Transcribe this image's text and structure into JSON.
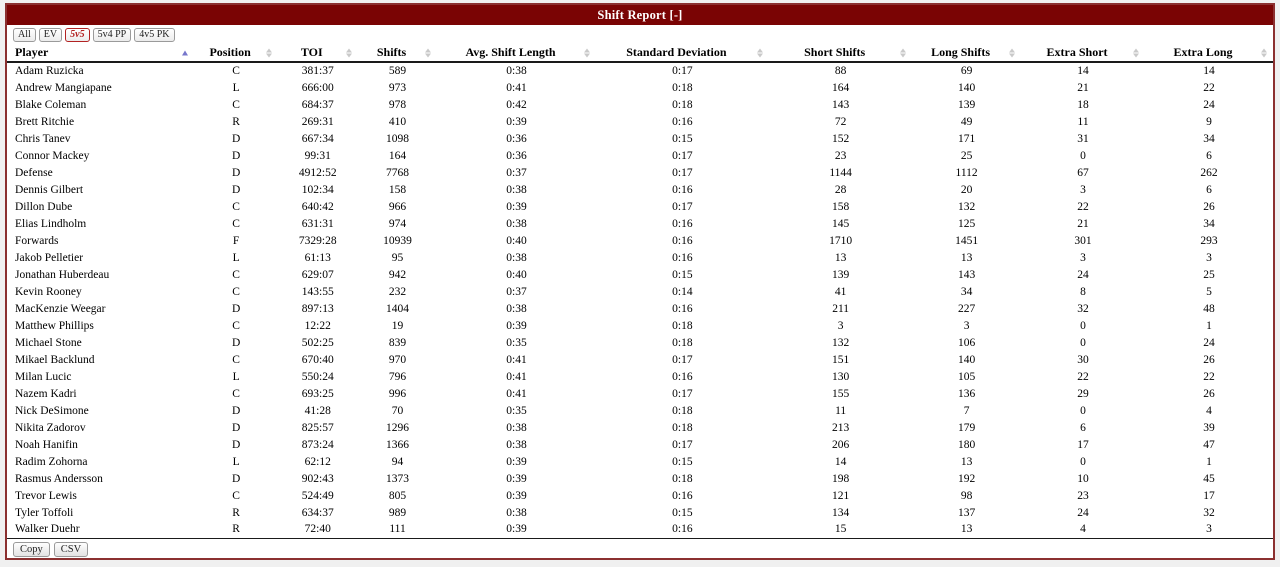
{
  "title": "Shift Report [-]",
  "colors": {
    "maroon": "#7a0404",
    "border": "#8b3030",
    "filter-active": "#b22222",
    "sort-active": "#7777cc",
    "sort-idle": "#c9c9c9"
  },
  "filters": [
    {
      "label": "All",
      "active": false
    },
    {
      "label": "EV",
      "active": false
    },
    {
      "label": "5v5",
      "active": true
    },
    {
      "label": "5v4 PP",
      "active": false
    },
    {
      "label": "4v5 PK",
      "active": false
    }
  ],
  "table": {
    "columns": [
      {
        "label": "Player",
        "key": "player",
        "sort": "asc",
        "icon": "sort-asc-icon"
      },
      {
        "label": "Position",
        "key": "position",
        "sort": "none",
        "icon": "sort-both-icon"
      },
      {
        "label": "TOI",
        "key": "toi",
        "sort": "none",
        "icon": "sort-both-icon"
      },
      {
        "label": "Shifts",
        "key": "shifts",
        "sort": "none",
        "icon": "sort-both-icon"
      },
      {
        "label": "Avg. Shift Length",
        "key": "avg-shift-length",
        "sort": "none",
        "icon": "sort-both-icon"
      },
      {
        "label": "Standard Deviation",
        "key": "standard-deviation",
        "sort": "none",
        "icon": "sort-both-icon"
      },
      {
        "label": "Short Shifts",
        "key": "short-shifts",
        "sort": "none",
        "icon": "sort-both-icon"
      },
      {
        "label": "Long Shifts",
        "key": "long-shifts",
        "sort": "none",
        "icon": "sort-both-icon"
      },
      {
        "label": "Extra Short",
        "key": "extra-short",
        "sort": "none",
        "icon": "sort-both-icon"
      },
      {
        "label": "Extra Long",
        "key": "extra-long",
        "sort": "none",
        "icon": "sort-both-icon"
      }
    ],
    "rows": [
      [
        "Adam Ruzicka",
        "C",
        "381:37",
        "589",
        "0:38",
        "0:17",
        "88",
        "69",
        "14",
        "14"
      ],
      [
        "Andrew Mangiapane",
        "L",
        "666:00",
        "973",
        "0:41",
        "0:18",
        "164",
        "140",
        "21",
        "22"
      ],
      [
        "Blake Coleman",
        "C",
        "684:37",
        "978",
        "0:42",
        "0:18",
        "143",
        "139",
        "18",
        "24"
      ],
      [
        "Brett Ritchie",
        "R",
        "269:31",
        "410",
        "0:39",
        "0:16",
        "72",
        "49",
        "11",
        "9"
      ],
      [
        "Chris Tanev",
        "D",
        "667:34",
        "1098",
        "0:36",
        "0:15",
        "152",
        "171",
        "31",
        "34"
      ],
      [
        "Connor Mackey",
        "D",
        "99:31",
        "164",
        "0:36",
        "0:17",
        "23",
        "25",
        "0",
        "6"
      ],
      [
        "Defense",
        "D",
        "4912:52",
        "7768",
        "0:37",
        "0:17",
        "1144",
        "1112",
        "67",
        "262"
      ],
      [
        "Dennis Gilbert",
        "D",
        "102:34",
        "158",
        "0:38",
        "0:16",
        "28",
        "20",
        "3",
        "6"
      ],
      [
        "Dillon Dube",
        "C",
        "640:42",
        "966",
        "0:39",
        "0:17",
        "158",
        "132",
        "22",
        "26"
      ],
      [
        "Elias Lindholm",
        "C",
        "631:31",
        "974",
        "0:38",
        "0:16",
        "145",
        "125",
        "21",
        "34"
      ],
      [
        "Forwards",
        "F",
        "7329:28",
        "10939",
        "0:40",
        "0:16",
        "1710",
        "1451",
        "301",
        "293"
      ],
      [
        "Jakob Pelletier",
        "L",
        "61:13",
        "95",
        "0:38",
        "0:16",
        "13",
        "13",
        "3",
        "3"
      ],
      [
        "Jonathan Huberdeau",
        "C",
        "629:07",
        "942",
        "0:40",
        "0:15",
        "139",
        "143",
        "24",
        "25"
      ],
      [
        "Kevin Rooney",
        "C",
        "143:55",
        "232",
        "0:37",
        "0:14",
        "41",
        "34",
        "8",
        "5"
      ],
      [
        "MacKenzie Weegar",
        "D",
        "897:13",
        "1404",
        "0:38",
        "0:16",
        "211",
        "227",
        "32",
        "48"
      ],
      [
        "Matthew Phillips",
        "C",
        "12:22",
        "19",
        "0:39",
        "0:18",
        "3",
        "3",
        "0",
        "1"
      ],
      [
        "Michael Stone",
        "D",
        "502:25",
        "839",
        "0:35",
        "0:18",
        "132",
        "106",
        "0",
        "24"
      ],
      [
        "Mikael Backlund",
        "C",
        "670:40",
        "970",
        "0:41",
        "0:17",
        "151",
        "140",
        "30",
        "26"
      ],
      [
        "Milan Lucic",
        "L",
        "550:24",
        "796",
        "0:41",
        "0:16",
        "130",
        "105",
        "22",
        "22"
      ],
      [
        "Nazem Kadri",
        "C",
        "693:25",
        "996",
        "0:41",
        "0:17",
        "155",
        "136",
        "29",
        "26"
      ],
      [
        "Nick DeSimone",
        "D",
        "41:28",
        "70",
        "0:35",
        "0:18",
        "11",
        "7",
        "0",
        "4"
      ],
      [
        "Nikita Zadorov",
        "D",
        "825:57",
        "1296",
        "0:38",
        "0:18",
        "213",
        "179",
        "6",
        "39"
      ],
      [
        "Noah Hanifin",
        "D",
        "873:24",
        "1366",
        "0:38",
        "0:17",
        "206",
        "180",
        "17",
        "47"
      ],
      [
        "Radim Zohorna",
        "L",
        "62:12",
        "94",
        "0:39",
        "0:15",
        "14",
        "13",
        "0",
        "1"
      ],
      [
        "Rasmus Andersson",
        "D",
        "902:43",
        "1373",
        "0:39",
        "0:18",
        "198",
        "192",
        "10",
        "45"
      ],
      [
        "Trevor Lewis",
        "C",
        "524:49",
        "805",
        "0:39",
        "0:16",
        "121",
        "98",
        "23",
        "17"
      ],
      [
        "Tyler Toffoli",
        "R",
        "634:37",
        "989",
        "0:38",
        "0:15",
        "134",
        "137",
        "24",
        "32"
      ],
      [
        "Walker Duehr",
        "R",
        "72:40",
        "111",
        "0:39",
        "0:16",
        "15",
        "13",
        "4",
        "3"
      ]
    ]
  },
  "footer": {
    "copy_label": "Copy",
    "csv_label": "CSV"
  }
}
